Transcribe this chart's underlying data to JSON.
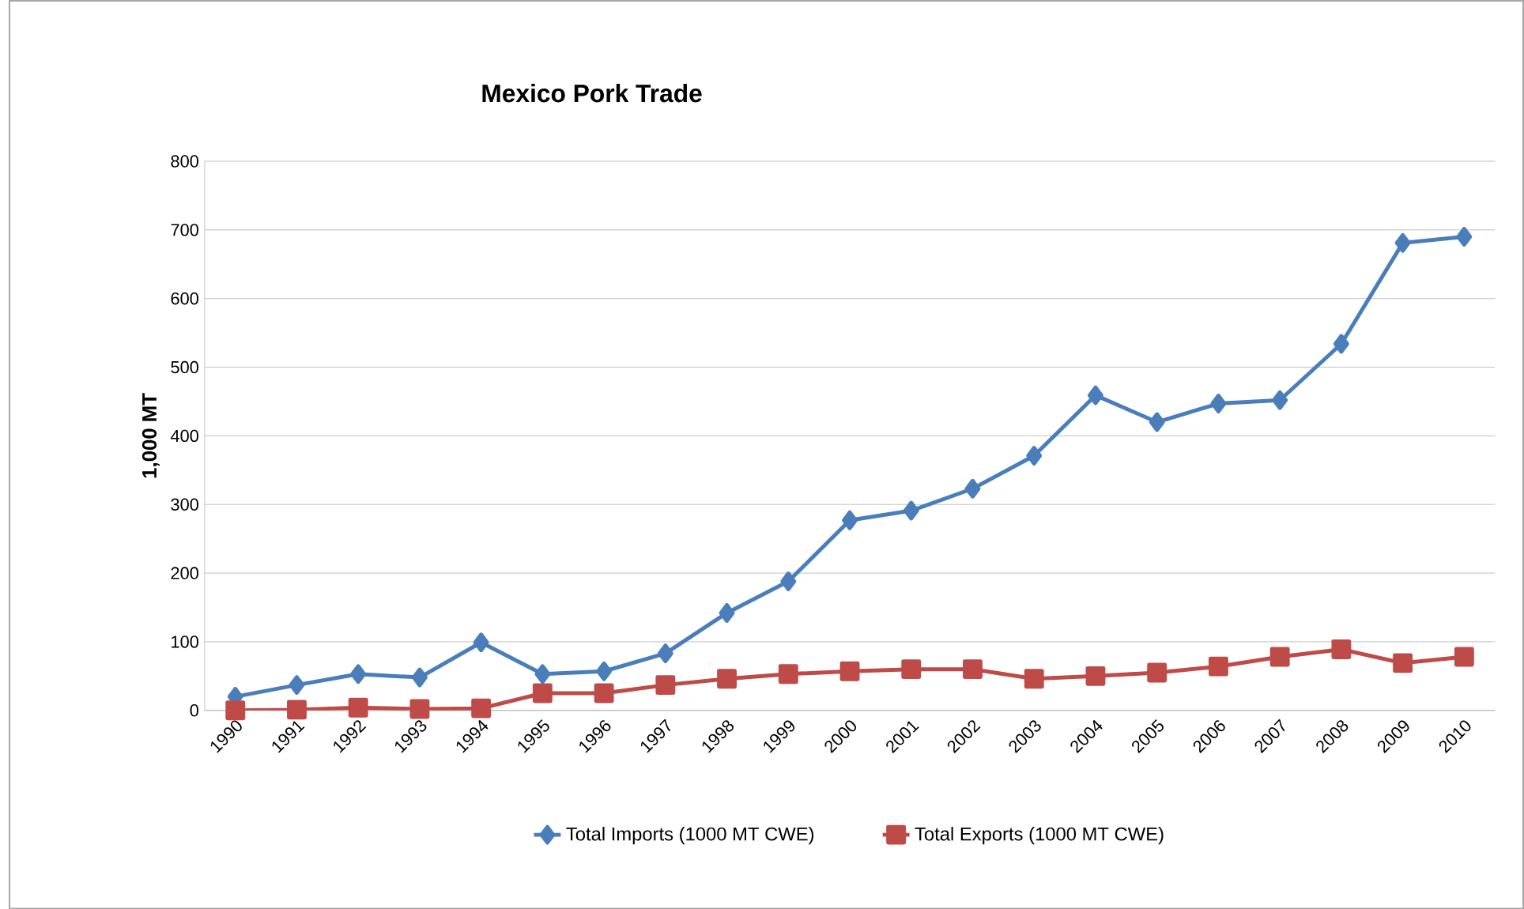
{
  "chart_data": {
    "type": "line",
    "title": "Mexico Pork Trade",
    "ylabel": "1,000 MT",
    "categories": [
      "1990",
      "1991",
      "1992",
      "1993",
      "1994",
      "1995",
      "1996",
      "1997",
      "1998",
      "1999",
      "2000",
      "2001",
      "2002",
      "2003",
      "2004",
      "2005",
      "2006",
      "2007",
      "2008",
      "2009",
      "2010"
    ],
    "series": [
      {
        "name": "Total Imports (1000 MT CWE)",
        "color": "#4a7ebb",
        "marker": "diamond",
        "values": [
          20,
          37,
          53,
          48,
          99,
          53,
          57,
          83,
          142,
          188,
          277,
          291,
          323,
          371,
          459,
          420,
          447,
          452,
          534,
          681,
          690
        ]
      },
      {
        "name": "Total Exports (1000 MT CWE)",
        "color": "#be4b48",
        "marker": "square",
        "values": [
          0,
          1,
          4,
          2,
          3,
          25,
          25,
          37,
          46,
          53,
          57,
          60,
          60,
          46,
          50,
          55,
          64,
          78,
          89,
          69,
          78
        ]
      }
    ],
    "ylim": [
      0,
      800
    ],
    "yticks": [
      0,
      100,
      200,
      300,
      400,
      500,
      600,
      700,
      800
    ],
    "grid": "y",
    "legend": "bottom",
    "line_style": "solid"
  }
}
